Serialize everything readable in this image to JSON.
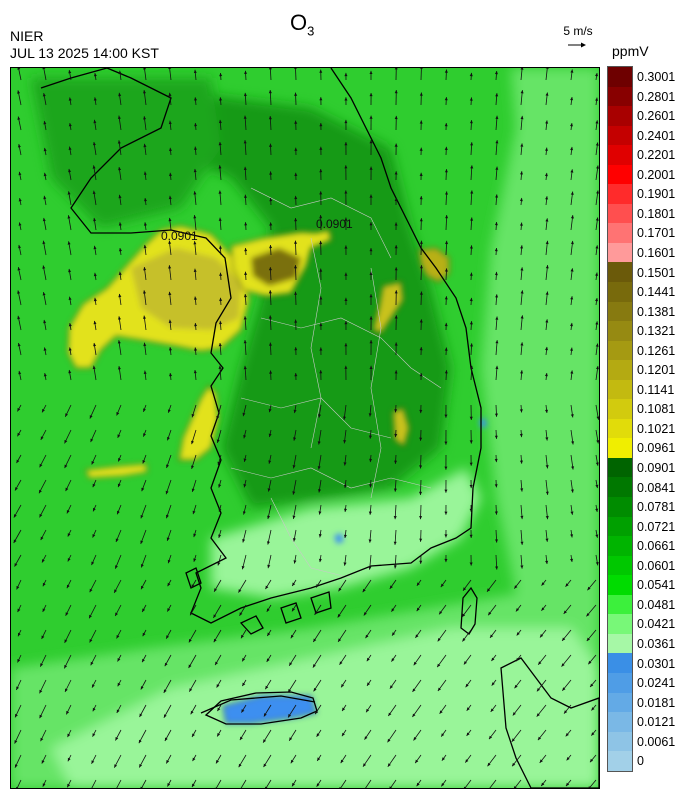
{
  "header": {
    "agency": "NIER",
    "datetime": "JUL 13 2025 14:00 KST",
    "species_main": "O",
    "species_sub": "3",
    "vector_reference": "5 m/s",
    "unit": "ppmV"
  },
  "map": {
    "contour_labels": [
      "0.0901",
      "0.0901"
    ],
    "colors": {
      "land_base": "#2fbc2f",
      "sea_base": "#2fcd2f",
      "sea_light": "#66e466",
      "land_light": "#99f599",
      "dark_green": "#149a14",
      "yellow": "#e2e21a",
      "olive": "#a6a200",
      "dark_olive": "#7a6f10",
      "blue": "#3d8ff0",
      "coast": "#000000",
      "admin": "#c9c9c9",
      "arrow": "#111111"
    }
  },
  "legend": {
    "levels": [
      {
        "label": "0.3001",
        "color": "#6e0000"
      },
      {
        "label": "0.2801",
        "color": "#880000"
      },
      {
        "label": "0.2601",
        "color": "#a80000"
      },
      {
        "label": "0.2401",
        "color": "#c40000"
      },
      {
        "label": "0.2201",
        "color": "#e00000"
      },
      {
        "label": "0.2001",
        "color": "#ff0000"
      },
      {
        "label": "0.1901",
        "color": "#ff2b2b"
      },
      {
        "label": "0.1801",
        "color": "#ff4f4f"
      },
      {
        "label": "0.1701",
        "color": "#ff7373"
      },
      {
        "label": "0.1601",
        "color": "#ff9a9a"
      },
      {
        "label": "0.1501",
        "color": "#6b5a0a"
      },
      {
        "label": "0.1441",
        "color": "#786a0c"
      },
      {
        "label": "0.1381",
        "color": "#877a10"
      },
      {
        "label": "0.1321",
        "color": "#968a12"
      },
      {
        "label": "0.1261",
        "color": "#a59a12"
      },
      {
        "label": "0.1201",
        "color": "#b4aa12"
      },
      {
        "label": "0.1141",
        "color": "#c3ba10"
      },
      {
        "label": "0.1081",
        "color": "#d2cb0e"
      },
      {
        "label": "0.1021",
        "color": "#e1dc0a"
      },
      {
        "label": "0.0961",
        "color": "#f0ee00"
      },
      {
        "label": "0.0901",
        "color": "#006400"
      },
      {
        "label": "0.0841",
        "color": "#007800"
      },
      {
        "label": "0.0781",
        "color": "#008c00"
      },
      {
        "label": "0.0721",
        "color": "#00a000"
      },
      {
        "label": "0.0661",
        "color": "#00b400"
      },
      {
        "label": "0.0601",
        "color": "#00c800"
      },
      {
        "label": "0.0541",
        "color": "#00dc00"
      },
      {
        "label": "0.0481",
        "color": "#3cf03c"
      },
      {
        "label": "0.0421",
        "color": "#78f878"
      },
      {
        "label": "0.0361",
        "color": "#a6f8a6"
      },
      {
        "label": "0.0301",
        "color": "#3a8fe6"
      },
      {
        "label": "0.0241",
        "color": "#4f9de6"
      },
      {
        "label": "0.0181",
        "color": "#63aae6"
      },
      {
        "label": "0.0121",
        "color": "#7ab8e6"
      },
      {
        "label": "0.0061",
        "color": "#8ec4e6"
      },
      {
        "label": "0",
        "color": "#a2d0e8"
      }
    ]
  }
}
